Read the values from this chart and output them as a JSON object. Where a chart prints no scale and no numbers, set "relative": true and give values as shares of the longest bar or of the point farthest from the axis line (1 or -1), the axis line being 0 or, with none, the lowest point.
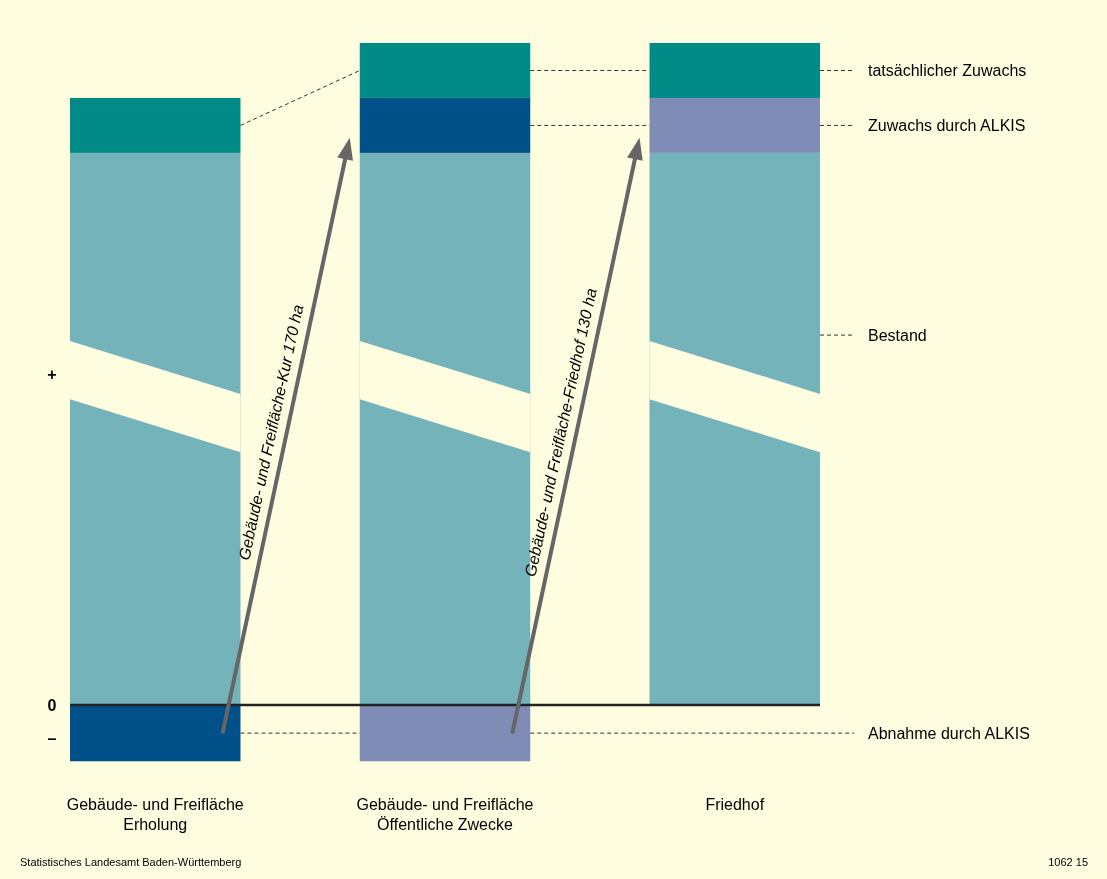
{
  "chart_data": {
    "type": "bar",
    "stacked": true,
    "relative": true,
    "categories": [
      "Gebäude- und Freifläche\nErholung",
      "Gebäude- und Freifläche\nÖffentliche Zwecke",
      "Friedhof"
    ],
    "series": [
      {
        "name": "Bestand",
        "colors": [
          "#74b3b9",
          "#74b3b9",
          "#74b3b9"
        ],
        "values": [
          0.834,
          0.834,
          0.834
        ]
      },
      {
        "name": "Zuwachs durch ALKIS",
        "colors": [
          null,
          "#00508a",
          "#7f8cb5"
        ],
        "values": [
          null,
          0.083,
          0.083
        ]
      },
      {
        "name": "tatsächlicher Zuwachs",
        "colors": [
          "#008b87",
          "#008b87",
          "#008b87"
        ],
        "values": [
          0.083,
          0.083,
          0.083
        ]
      },
      {
        "name": "Abnahme durch ALKIS",
        "colors": [
          "#00508a",
          "#7f8cb5",
          null
        ],
        "values": [
          -0.085,
          -0.085,
          null
        ]
      }
    ],
    "annotations": [
      "+",
      "0",
      "–",
      "Gebäude- und Freifläche-Kur 170 ha",
      "Gebäude- und Freifläche-Friedhof 130 ha",
      "Statistisches Landesamt Baden-Württemberg",
      "1062 15"
    ]
  }
}
